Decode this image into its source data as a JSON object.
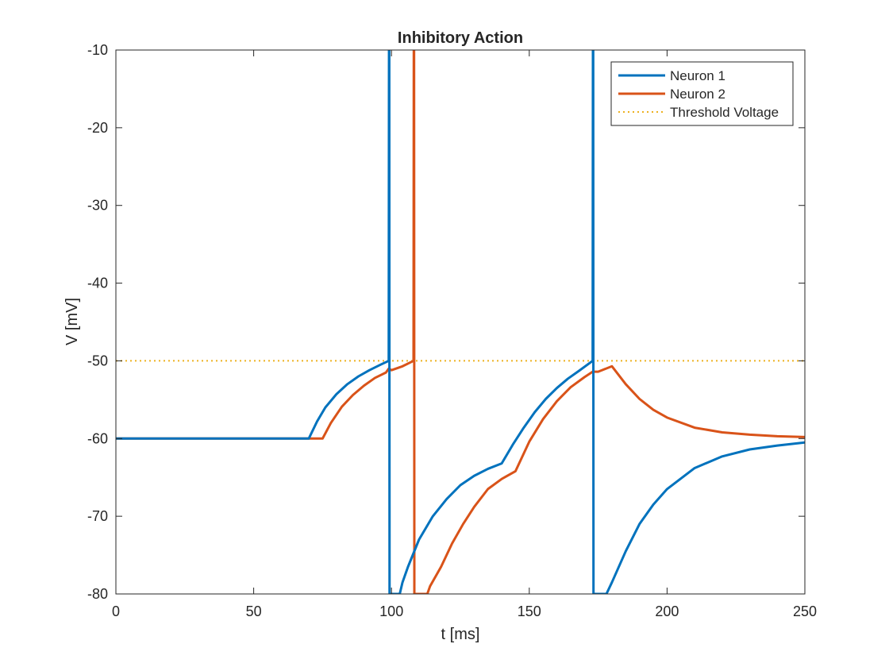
{
  "chart_data": {
    "type": "line",
    "title": "Inhibitory Action",
    "xlabel": "t [ms]",
    "ylabel": "V [mV]",
    "xlim": [
      0,
      250
    ],
    "ylim": [
      -80,
      -10
    ],
    "xticks": [
      0,
      50,
      100,
      150,
      200,
      250
    ],
    "yticks": [
      -80,
      -70,
      -60,
      -50,
      -40,
      -30,
      -20,
      -10
    ],
    "xtick_labels": [
      "0",
      "50",
      "100",
      "150",
      "200",
      "250"
    ],
    "ytick_labels": [
      "-80",
      "-70",
      "-60",
      "-50",
      "-40",
      "-30",
      "-20",
      "-10"
    ],
    "grid": false,
    "legend_position": "top-right",
    "series": [
      {
        "name": "Neuron 1",
        "color": "#0072BD",
        "style": "solid",
        "x": [
          0,
          70,
          73,
          76,
          80,
          84,
          88,
          92,
          96,
          99,
          99.1,
          99.2,
          99.3,
          103,
          104,
          106,
          110,
          115,
          120,
          125,
          130,
          135,
          140,
          144,
          148,
          152,
          156,
          160,
          164,
          168,
          173,
          173.1,
          173.2,
          173.3,
          178,
          180,
          185,
          190,
          195,
          200,
          210,
          220,
          230,
          240,
          250
        ],
        "y": [
          -60,
          -60,
          -57.8,
          -56.0,
          -54.3,
          -53.0,
          -52.0,
          -51.2,
          -50.5,
          -50.0,
          -10,
          -10,
          -80,
          -80,
          -78.5,
          -76.5,
          -73.0,
          -70.0,
          -67.8,
          -66.0,
          -64.8,
          -63.9,
          -63.2,
          -60.8,
          -58.6,
          -56.6,
          -54.9,
          -53.5,
          -52.3,
          -51.3,
          -50.0,
          -10,
          -10,
          -80,
          -80,
          -78.5,
          -74.5,
          -71.0,
          -68.5,
          -66.5,
          -63.8,
          -62.3,
          -61.4,
          -60.9,
          -60.5
        ]
      },
      {
        "name": "Neuron 2",
        "color": "#D95319",
        "style": "solid",
        "x": [
          0,
          75,
          78,
          82,
          86,
          90,
          94,
          98,
          99,
          100,
          104,
          108,
          108.1,
          108.2,
          108.3,
          113,
          114,
          118,
          122,
          126,
          130,
          135,
          140,
          145,
          150,
          155,
          160,
          165,
          170,
          173,
          175,
          180,
          185,
          190,
          195,
          200,
          210,
          220,
          230,
          240,
          250
        ],
        "y": [
          -60,
          -60,
          -58.0,
          -55.9,
          -54.4,
          -53.2,
          -52.2,
          -51.5,
          -51.0,
          -51.2,
          -50.7,
          -50.0,
          -10,
          -10,
          -80,
          -80,
          -79.0,
          -76.5,
          -73.5,
          -71.0,
          -68.8,
          -66.5,
          -65.2,
          -64.2,
          -60.4,
          -57.5,
          -55.2,
          -53.4,
          -52.1,
          -51.4,
          -51.4,
          -50.7,
          -53.0,
          -54.9,
          -56.3,
          -57.3,
          -58.6,
          -59.2,
          -59.5,
          -59.7,
          -59.8
        ]
      },
      {
        "name": "Threshold Voltage",
        "color": "#EDB120",
        "style": "dotted",
        "x": [
          0,
          250
        ],
        "y": [
          -50,
          -50
        ]
      }
    ]
  }
}
